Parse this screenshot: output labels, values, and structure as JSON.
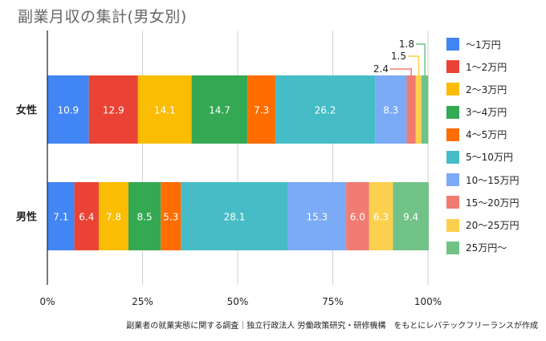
{
  "title": "副業月収の集計(男女別)",
  "source_note": "副業者の就業実態に関する調査｜独立行政法人 労働政策研究・研修機構　をもとにレバテックフリーランスが作成",
  "chart_data": {
    "type": "bar",
    "stacked": true,
    "orientation": "horizontal",
    "percent_stacked": true,
    "categories": [
      "女性",
      "男性"
    ],
    "series": [
      {
        "name": "〜1万円",
        "color": "#4285f4",
        "values": [
          10.9,
          7.1
        ]
      },
      {
        "name": "1〜2万円",
        "color": "#ea4335",
        "values": [
          12.9,
          6.4
        ]
      },
      {
        "name": "2〜3万円",
        "color": "#fbbc04",
        "values": [
          14.1,
          7.8
        ]
      },
      {
        "name": "3〜4万円",
        "color": "#34a853",
        "values": [
          14.7,
          8.5
        ]
      },
      {
        "name": "4〜5万円",
        "color": "#ff6d01",
        "values": [
          7.3,
          5.3
        ]
      },
      {
        "name": "5〜10万円",
        "color": "#46bdc6",
        "values": [
          26.2,
          28.1
        ]
      },
      {
        "name": "10〜15万円",
        "color": "#7baaf7",
        "values": [
          8.3,
          15.3
        ]
      },
      {
        "name": "15〜20万円",
        "color": "#f07b72",
        "values": [
          2.4,
          6.0
        ]
      },
      {
        "name": "20〜25万円",
        "color": "#fcd04f",
        "values": [
          1.5,
          6.3
        ]
      },
      {
        "name": "25万円〜",
        "color": "#71c287",
        "values": [
          1.8,
          9.4
        ]
      }
    ],
    "xlim": [
      0,
      100
    ],
    "xticks": [
      "0%",
      "25%",
      "50%",
      "75%",
      "100%"
    ],
    "legend_position": "right"
  }
}
